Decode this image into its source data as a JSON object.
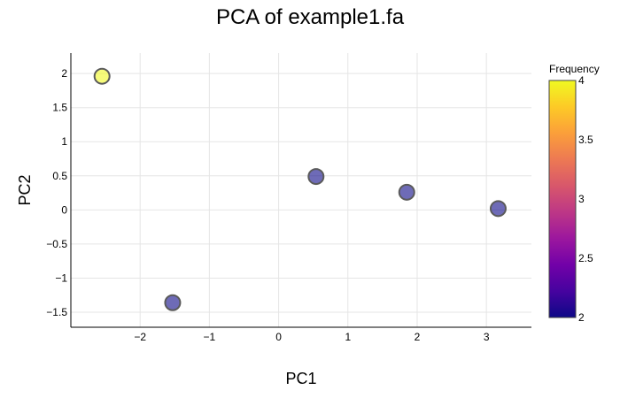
{
  "chart_data": {
    "type": "scatter",
    "title": "PCA of example1.fa",
    "xlabel": "PC1",
    "ylabel": "PC2",
    "xlim": [
      -3.0,
      3.65
    ],
    "ylim": [
      -1.72,
      2.3
    ],
    "x_ticks": [
      -2,
      -1,
      0,
      1,
      2,
      3
    ],
    "x_tick_labels": [
      "−2",
      "−1",
      "0",
      "1",
      "2",
      "3"
    ],
    "y_ticks": [
      2,
      1.5,
      1,
      0.5,
      0,
      -0.5,
      -1,
      -1.5
    ],
    "y_tick_labels": [
      "2",
      "1.5",
      "1",
      "0.5",
      "0",
      "−0.5",
      "−1",
      "−1.5"
    ],
    "grid": true,
    "points": [
      {
        "x": -2.55,
        "y": 1.96,
        "frequency": 4
      },
      {
        "x": -1.53,
        "y": -1.36,
        "frequency": 2
      },
      {
        "x": 0.54,
        "y": 0.49,
        "frequency": 2
      },
      {
        "x": 1.85,
        "y": 0.26,
        "frequency": 2
      },
      {
        "x": 3.17,
        "y": 0.02,
        "frequency": 2
      }
    ],
    "colorbar": {
      "title": "Frequency",
      "min": 2,
      "max": 4,
      "ticks": [
        4,
        3.5,
        3,
        2.5,
        2
      ],
      "tick_labels": [
        "4",
        "3.5",
        "3",
        "2.5",
        "2"
      ],
      "colorscale": [
        "#0d0887",
        "#46039f",
        "#7201a8",
        "#9c179e",
        "#bd3786",
        "#d8576b",
        "#ed7953",
        "#fb9f3a",
        "#fdca26",
        "#f0f921"
      ]
    },
    "marker_opacity": 0.6,
    "marker_line_color": "#5a5a5a"
  }
}
